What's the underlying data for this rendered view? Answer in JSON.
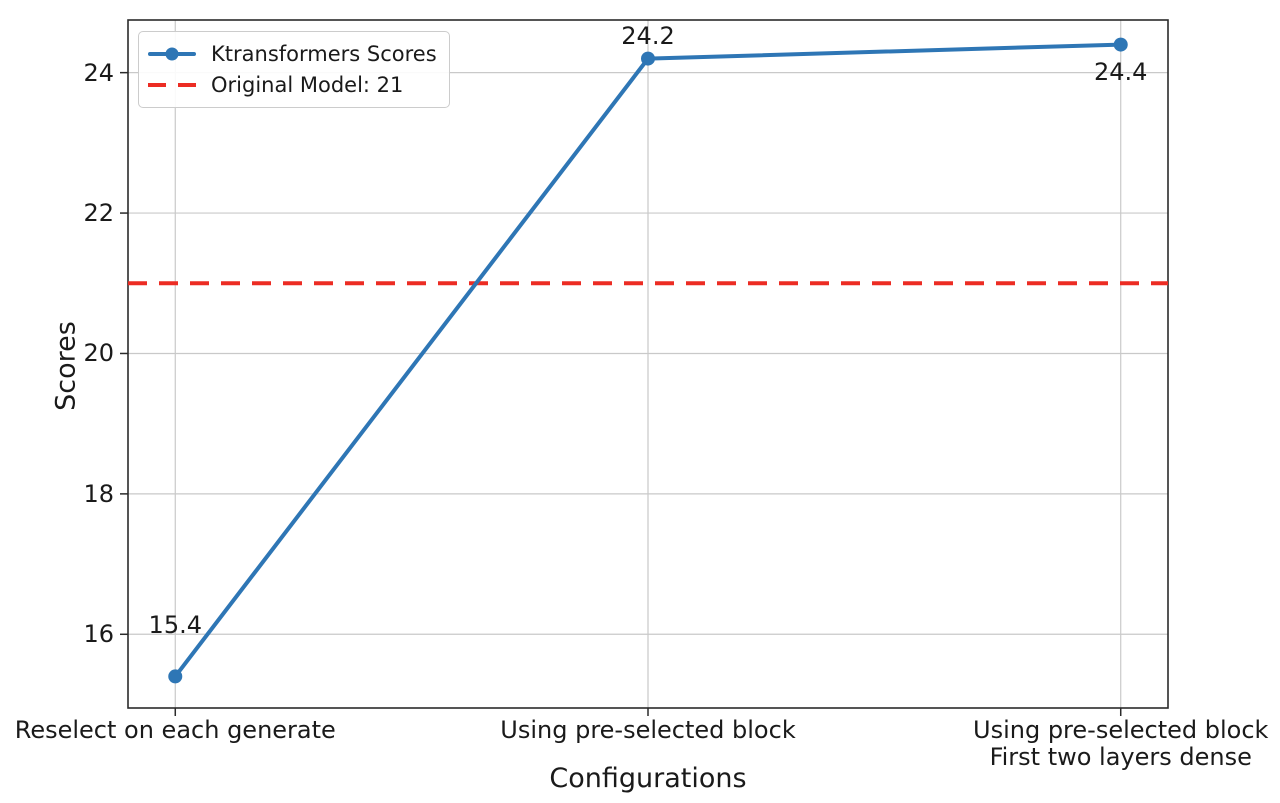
{
  "chart_data": {
    "type": "line",
    "title": "",
    "xlabel": "Configurations",
    "ylabel": "Scores",
    "categories": [
      "Reselect on each generate",
      "Using pre-selected block",
      "Using pre-selected block\nFirst two layers dense"
    ],
    "series": [
      {
        "name": "Ktransformers Scores",
        "values": [
          15.4,
          24.2,
          24.4
        ],
        "color": "#2e76b5",
        "marker": "circle",
        "line_style": "solid"
      }
    ],
    "reference_line": {
      "label": "Original Model: 21",
      "value": 21,
      "color": "#ec2c23",
      "line_style": "dashed"
    },
    "yticks": [
      16,
      18,
      20,
      22,
      24
    ],
    "ylim": [
      14.95,
      24.75
    ],
    "grid": true,
    "legend_position": "upper-left",
    "point_labels": [
      {
        "text": "15.4",
        "position": "above-far"
      },
      {
        "text": "24.2",
        "position": "above"
      },
      {
        "text": "24.4",
        "position": "below"
      }
    ],
    "colors": {
      "grid": "#c9c9c9",
      "spine": "#2b2b2b",
      "text": "#1a1a1a"
    }
  }
}
